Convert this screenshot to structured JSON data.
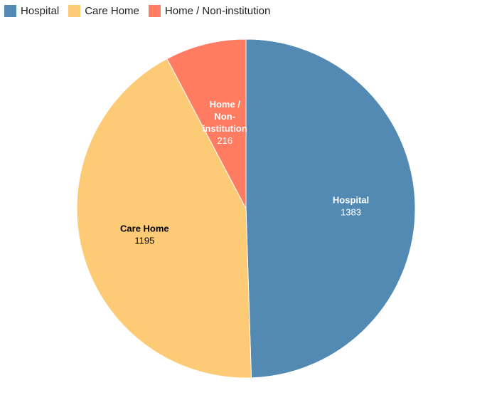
{
  "chart_data": {
    "type": "pie",
    "legend_position": "top-left",
    "categories": [
      "Hospital",
      "Care Home",
      "Home / Non-institution"
    ],
    "values": [
      1383,
      1195,
      216
    ],
    "colors": [
      "#528ab4",
      "#fdca76",
      "#ff7b61"
    ],
    "label_colors": [
      "#ffffff",
      "#000000",
      "#ffffff"
    ],
    "label_lines": [
      [
        "Hospital"
      ],
      [
        "Care Home"
      ],
      [
        "Home /",
        "Non-",
        "institution"
      ]
    ]
  }
}
